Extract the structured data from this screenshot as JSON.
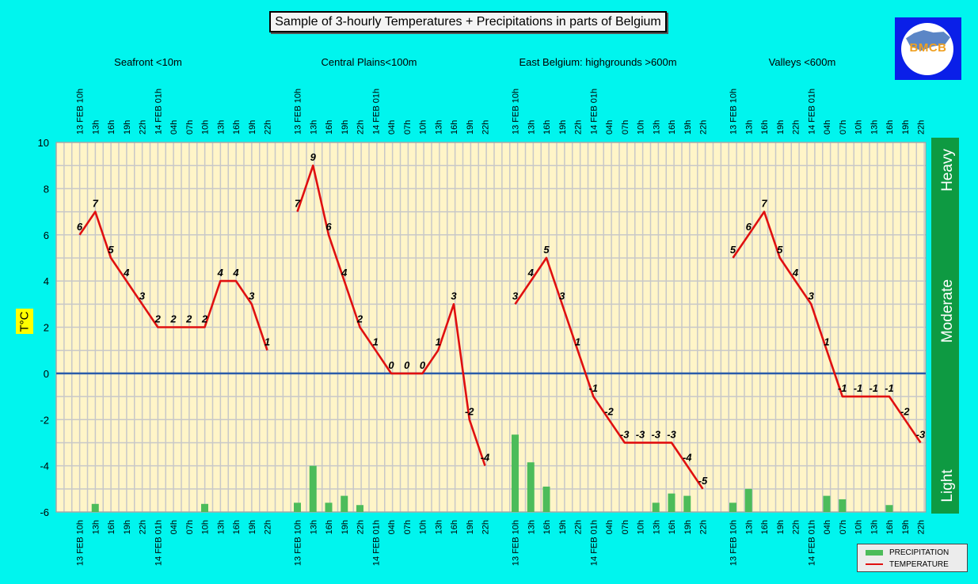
{
  "title": "Sample of 3-hourly Temperatures + Precipitations in parts of Belgium",
  "logo_text": "BMCB",
  "colors": {
    "background": "#00f5ee",
    "plot_background": "#fff5c8",
    "temperature_line": "#e01010",
    "precipitation_bar": "#4cbc5a",
    "zero_line": "#2a5caa",
    "intensity_band": "#0e9a42",
    "logo_background": "#0a1fe8"
  },
  "legend": {
    "precipitation": "PRECIPITATION",
    "temperature": "TEMPERATURE"
  },
  "chart_data": {
    "type": "line",
    "ylabel": "T°C",
    "ylim": [
      -6,
      10
    ],
    "yticks": [
      10,
      8,
      6,
      4,
      2,
      0,
      -2,
      -4,
      -6
    ],
    "grid": true,
    "legend_position": "bottom-right",
    "intensity_scale": [
      "Light",
      "Moderate",
      "Heavy"
    ],
    "tick_labels": [
      "13 FEB 10h",
      "13h",
      "16h",
      "19h",
      "22h",
      "14 FEB 01h",
      "04h",
      "07h",
      "10h",
      "13h",
      "16h",
      "19h",
      "22h"
    ],
    "panels": [
      {
        "name": "Seafront <10m",
        "temperature": [
          6,
          7,
          5,
          4,
          3,
          2,
          2,
          2,
          2,
          4,
          4,
          3,
          1
        ],
        "precipitation": [
          null,
          -5.65,
          null,
          null,
          null,
          null,
          null,
          null,
          -5.65,
          null,
          null,
          null,
          null
        ]
      },
      {
        "name": "Central Plains<100m",
        "temperature": [
          7,
          9,
          6,
          4,
          2,
          1,
          0,
          0,
          0,
          1,
          3,
          -2,
          -4
        ],
        "precipitation": [
          -5.6,
          -4.0,
          -5.6,
          -5.3,
          -5.7,
          null,
          null,
          null,
          null,
          null,
          null,
          null,
          null
        ]
      },
      {
        "name": "East Belgium:     highgrounds >600m",
        "temperature": [
          3,
          4,
          5,
          3,
          1,
          -1,
          -2,
          -3,
          -3,
          -3,
          -3,
          -4,
          -5
        ],
        "precipitation": [
          -2.65,
          -3.85,
          -4.9,
          null,
          null,
          null,
          null,
          null,
          null,
          -5.6,
          -5.2,
          -5.3,
          null
        ]
      },
      {
        "name": "Valleys <600m",
        "temperature": [
          5,
          6,
          7,
          5,
          4,
          3,
          1,
          -1,
          -1,
          -1,
          -1,
          -2,
          -3
        ],
        "precipitation": [
          -5.6,
          -5.0,
          null,
          null,
          null,
          null,
          -5.3,
          -5.45,
          null,
          null,
          -5.7,
          null,
          null
        ]
      }
    ]
  }
}
